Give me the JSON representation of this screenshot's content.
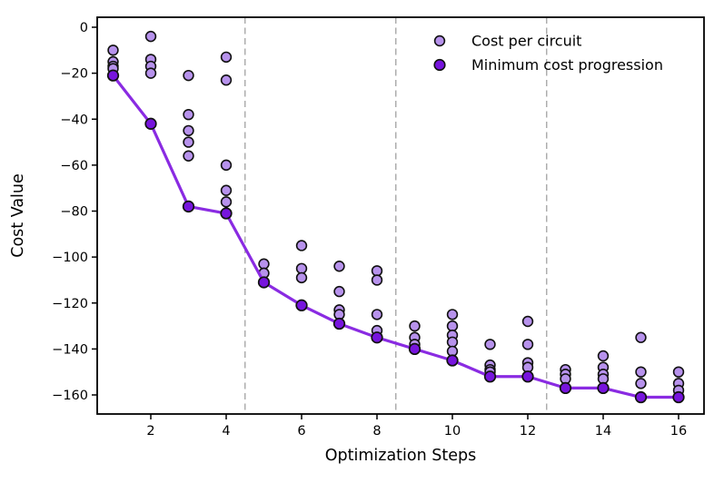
{
  "figure": {
    "background": "#ffffff",
    "frame_color": "#000000",
    "vline_color": "#a8a8a8"
  },
  "chart_data": {
    "type": "scatter",
    "title": "",
    "xlabel": "Optimization Steps",
    "ylabel": "Cost Value",
    "xlim": [
      0.58,
      16.67
    ],
    "ylim": [
      -168.3,
      4.35
    ],
    "x_ticks": [
      2,
      4,
      6,
      8,
      10,
      12,
      14,
      16
    ],
    "x_tick_labels": [
      "2",
      "4",
      "6",
      "8",
      "10",
      "12",
      "14",
      "16"
    ],
    "y_ticks": [
      0,
      -20,
      -40,
      -60,
      -80,
      -100,
      -120,
      -140,
      -160
    ],
    "y_tick_labels": [
      "0",
      "−20",
      "−40",
      "−60",
      "−80",
      "−100",
      "−120",
      "−140",
      "−160"
    ],
    "grid": false,
    "vlines_x": [
      4.5,
      8.5,
      12.5
    ],
    "legend_position": "upper right",
    "series": [
      {
        "name": "Cost per circuit",
        "type": "scatter",
        "marker_color": "#b792ec",
        "edge_color": "#111111",
        "points_by_step": [
          {
            "step": 1,
            "costs": [
              -10,
              -15,
              -17,
              -18
            ]
          },
          {
            "step": 2,
            "costs": [
              -4,
              -14,
              -17,
              -20
            ]
          },
          {
            "step": 3,
            "costs": [
              -21,
              -38,
              -45,
              -50,
              -56
            ]
          },
          {
            "step": 4,
            "costs": [
              -13,
              -23,
              -60,
              -71,
              -76
            ]
          },
          {
            "step": 5,
            "costs": [
              -103,
              -107
            ]
          },
          {
            "step": 6,
            "costs": [
              -95,
              -105,
              -109
            ]
          },
          {
            "step": 7,
            "costs": [
              -104,
              -115,
              -123,
              -125
            ]
          },
          {
            "step": 8,
            "costs": [
              -106,
              -110,
              -125,
              -132
            ]
          },
          {
            "step": 9,
            "costs": [
              -130,
              -135,
              -138
            ]
          },
          {
            "step": 10,
            "costs": [
              -125,
              -130,
              -134,
              -137,
              -141
            ]
          },
          {
            "step": 11,
            "costs": [
              -138,
              -147,
              -149,
              -150
            ]
          },
          {
            "step": 12,
            "costs": [
              -128,
              -138,
              -146,
              -148
            ]
          },
          {
            "step": 13,
            "costs": [
              -149,
              -151,
              -153
            ]
          },
          {
            "step": 14,
            "costs": [
              -143,
              -148,
              -151,
              -153
            ]
          },
          {
            "step": 15,
            "costs": [
              -135,
              -150,
              -155
            ]
          },
          {
            "step": 16,
            "costs": [
              -150,
              -155,
              -158
            ]
          }
        ]
      },
      {
        "name": "Minimum cost progression",
        "type": "line+marker",
        "marker_color": "#7714dd",
        "line_color": "#8a2be2",
        "edge_color": "#111111",
        "x": [
          1,
          2,
          3,
          4,
          5,
          6,
          7,
          8,
          9,
          10,
          11,
          12,
          13,
          14,
          15,
          16
        ],
        "values": [
          -21,
          -42,
          -78,
          -81,
          -111,
          -121,
          -129,
          -135,
          -140,
          -145,
          -152,
          -152,
          -157,
          -157,
          -161,
          -161
        ]
      }
    ]
  }
}
